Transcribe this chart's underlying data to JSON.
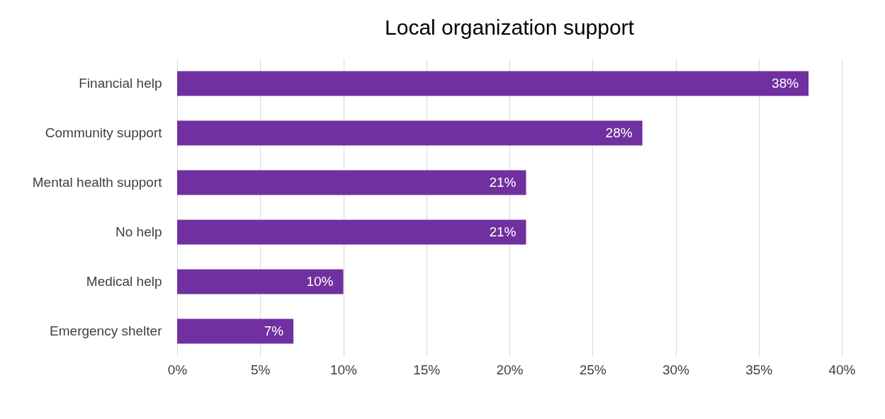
{
  "chart_data": {
    "type": "bar",
    "title": "Local organization support",
    "orientation": "horizontal",
    "categories": [
      "Financial help",
      "Community support",
      "Mental health support",
      "No help",
      "Medical help",
      "Emergency shelter"
    ],
    "values": [
      38,
      28,
      21,
      21,
      10,
      7
    ],
    "value_labels": [
      "38%",
      "28%",
      "21%",
      "21%",
      "10%",
      "7%"
    ],
    "color": "#7030a0",
    "xlim": [
      0,
      40
    ],
    "xticks": [
      {
        "value": 0,
        "label": "0%"
      },
      {
        "value": 5,
        "label": "5%"
      },
      {
        "value": 10,
        "label": "10%"
      },
      {
        "value": 15,
        "label": "15%"
      },
      {
        "value": 20,
        "label": "20%"
      },
      {
        "value": 25,
        "label": "25%"
      },
      {
        "value": 30,
        "label": "30%"
      },
      {
        "value": 35,
        "label": "35%"
      },
      {
        "value": 40,
        "label": "40%"
      }
    ],
    "grid": "x"
  }
}
